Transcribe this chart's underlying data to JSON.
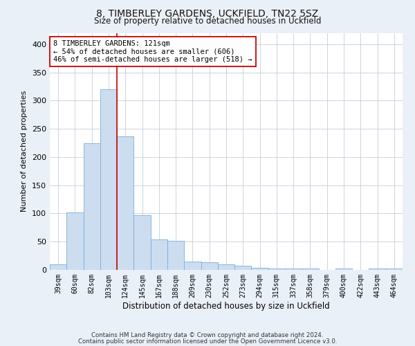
{
  "title1": "8, TIMBERLEY GARDENS, UCKFIELD, TN22 5SZ",
  "title2": "Size of property relative to detached houses in Uckfield",
  "xlabel": "Distribution of detached houses by size in Uckfield",
  "ylabel": "Number of detached properties",
  "categories": [
    "39sqm",
    "60sqm",
    "82sqm",
    "103sqm",
    "124sqm",
    "145sqm",
    "167sqm",
    "188sqm",
    "209sqm",
    "230sqm",
    "252sqm",
    "273sqm",
    "294sqm",
    "315sqm",
    "337sqm",
    "358sqm",
    "379sqm",
    "400sqm",
    "422sqm",
    "443sqm",
    "464sqm"
  ],
  "values": [
    10,
    102,
    224,
    320,
    237,
    97,
    54,
    52,
    15,
    13,
    10,
    7,
    4,
    3,
    2,
    2,
    0,
    2,
    0,
    2,
    2
  ],
  "bar_color": "#ccddf0",
  "bar_edge_color": "#7aafd4",
  "vline_x": 3.5,
  "vline_color": "#cc0000",
  "annotation_line1": "8 TIMBERLEY GARDENS: 121sqm",
  "annotation_line2": "← 54% of detached houses are smaller (606)",
  "annotation_line3": "46% of semi-detached houses are larger (518) →",
  "annotation_box_color": "#ffffff",
  "annotation_box_edge": "#cc0000",
  "ylim": [
    0,
    420
  ],
  "yticks": [
    0,
    50,
    100,
    150,
    200,
    250,
    300,
    350,
    400
  ],
  "footer1": "Contains HM Land Registry data © Crown copyright and database right 2024.",
  "footer2": "Contains public sector information licensed under the Open Government Licence v3.0.",
  "bg_color": "#eaf0f8",
  "plot_bg_color": "#ffffff",
  "grid_color": "#c5cdd8"
}
